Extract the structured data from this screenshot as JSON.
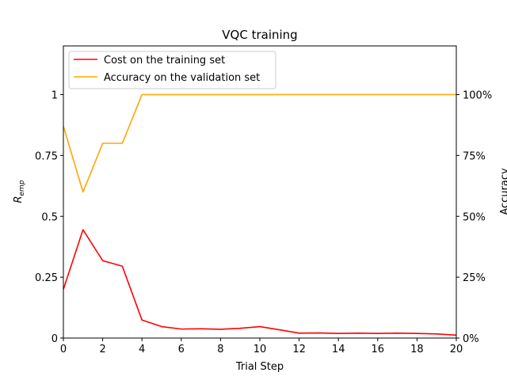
{
  "chart_data": {
    "type": "line",
    "title": "VQC training",
    "xlabel": "Trial Step",
    "ylabel_main": "R",
    "ylabel_sub": "emp",
    "ylabel_right": "Accuracy",
    "xlim": [
      0,
      20
    ],
    "ylim": [
      0,
      1.2
    ],
    "x_ticks": [
      "0",
      "2",
      "4",
      "6",
      "8",
      "10",
      "12",
      "14",
      "16",
      "18",
      "20"
    ],
    "y_ticks_left": [
      "0",
      "0.25",
      "0.5",
      "0.75",
      "1"
    ],
    "y_ticks_right": [
      "0%",
      "25%",
      "50%",
      "75%",
      "100%"
    ],
    "grid": false,
    "legend_position": "top-left",
    "series": [
      {
        "name": "Cost on the training set",
        "color": "#ff0000",
        "axis": "left",
        "x": [
          0,
          1,
          2,
          3,
          4,
          5,
          6,
          7,
          8,
          9,
          10,
          11,
          12,
          13,
          14,
          15,
          16,
          17,
          18,
          19,
          20
        ],
        "y": [
          0.2,
          0.445,
          0.318,
          0.295,
          0.074,
          0.047,
          0.037,
          0.038,
          0.036,
          0.04,
          0.047,
          0.034,
          0.02,
          0.021,
          0.019,
          0.02,
          0.019,
          0.02,
          0.019,
          0.017,
          0.012
        ]
      },
      {
        "name": "Accuracy on the validation set",
        "color": "#ffa500",
        "axis": "right",
        "x": [
          0,
          1,
          2,
          3,
          4,
          5,
          6,
          7,
          8,
          9,
          10,
          11,
          12,
          13,
          14,
          15,
          16,
          17,
          18,
          19,
          20
        ],
        "y": [
          0.87,
          0.6,
          0.8,
          0.8,
          1.0,
          1.0,
          1.0,
          1.0,
          1.0,
          1.0,
          1.0,
          1.0,
          1.0,
          1.0,
          1.0,
          1.0,
          1.0,
          1.0,
          1.0,
          1.0,
          1.0
        ]
      }
    ]
  }
}
